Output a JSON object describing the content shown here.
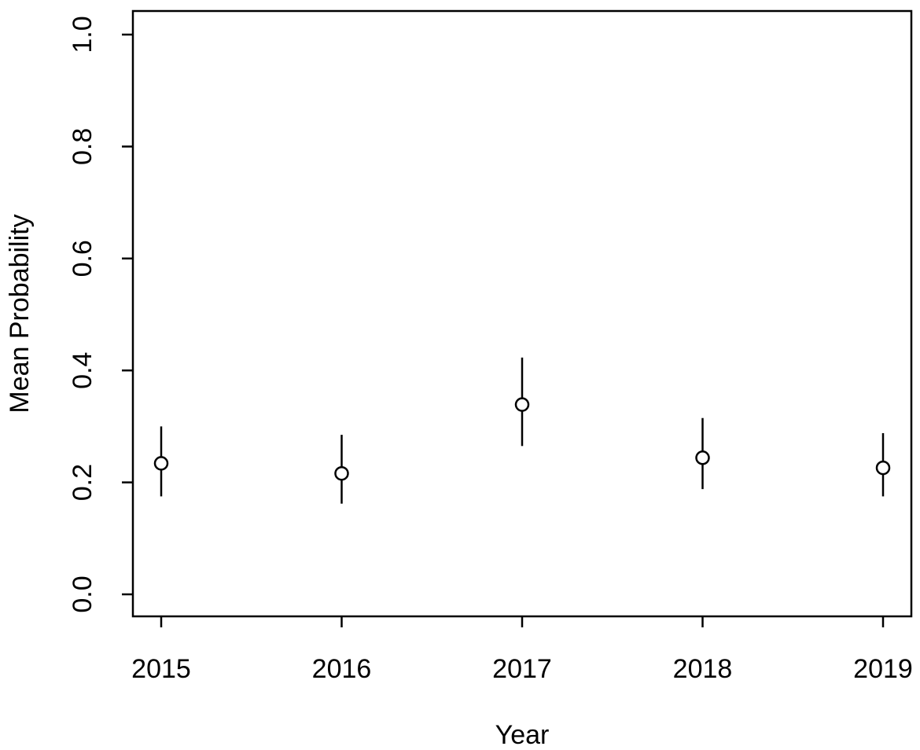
{
  "chart_data": {
    "type": "scatter",
    "title": "",
    "xlabel": "Year",
    "ylabel": "Mean Probability",
    "categories": [
      "2015",
      "2016",
      "2017",
      "2018",
      "2019"
    ],
    "x": [
      2015,
      2016,
      2017,
      2018,
      2019
    ],
    "y": [
      0.234,
      0.216,
      0.339,
      0.244,
      0.226
    ],
    "y_lower": [
      0.175,
      0.162,
      0.265,
      0.188,
      0.175
    ],
    "y_upper": [
      0.3,
      0.285,
      0.423,
      0.315,
      0.288
    ],
    "ylim": [
      0.0,
      1.0
    ],
    "y_ticks": [
      "0.0",
      "0.2",
      "0.4",
      "0.6",
      "0.8",
      "1.0"
    ],
    "grid": false,
    "marker": "open-circle",
    "error_bars": "vertical-line",
    "color": "#000000"
  }
}
